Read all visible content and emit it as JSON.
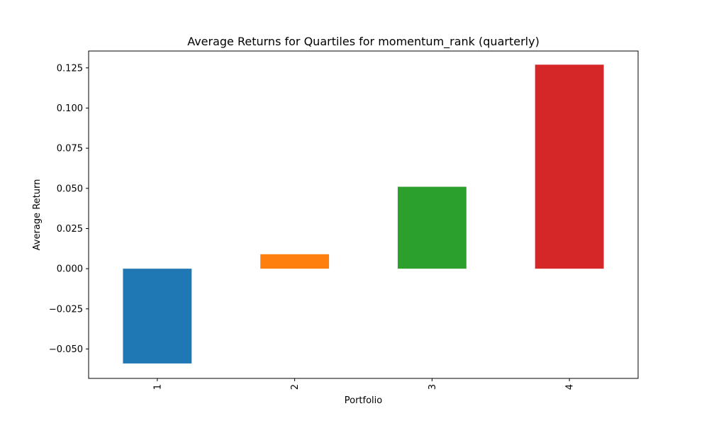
{
  "chart_data": {
    "type": "bar",
    "title": "Average Returns for Quartiles for momentum_rank (quarterly)",
    "xlabel": "Portfolio",
    "ylabel": "Average Return",
    "categories": [
      "1",
      "2",
      "3",
      "4"
    ],
    "values": [
      -0.059,
      0.009,
      0.051,
      0.127
    ],
    "colors": [
      "#1f77b4",
      "#ff7f0e",
      "#2ca02c",
      "#d62728"
    ],
    "ylim": [
      -0.0683,
      0.1355
    ],
    "yticks": [
      -0.05,
      -0.025,
      0.0,
      0.025,
      0.05,
      0.075,
      0.1,
      0.125
    ],
    "ytick_labels": [
      "−0.050",
      "−0.025",
      "0.000",
      "0.025",
      "0.050",
      "0.075",
      "0.100",
      "0.125"
    ],
    "xtick_rotation": "vertical",
    "grid": false,
    "legend": "none"
  }
}
